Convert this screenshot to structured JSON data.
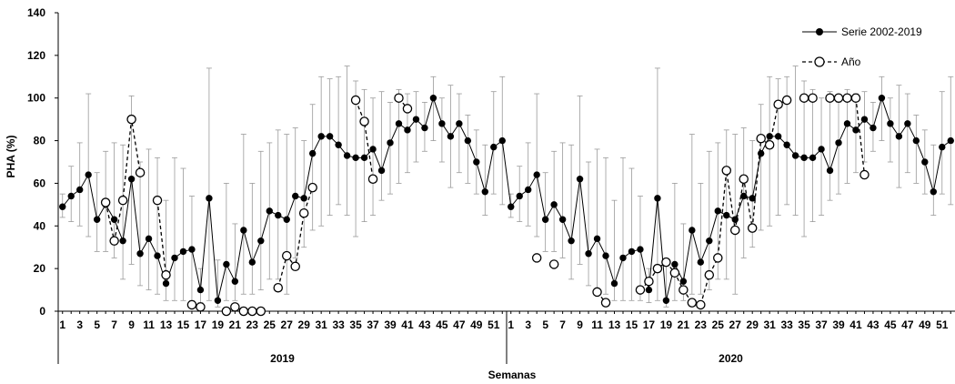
{
  "chart_data": {
    "type": "line",
    "xlabel": "Semanas",
    "ylabel": "PHA (%)",
    "ylim": [
      0,
      140
    ],
    "y_ticks": [
      0,
      20,
      40,
      60,
      80,
      100,
      120,
      140
    ],
    "years": [
      {
        "label": "2019",
        "start_week": 1,
        "end_week": 52
      },
      {
        "label": "2020",
        "start_week": 1,
        "end_week": 52
      }
    ],
    "x_tick_labels": [
      "1",
      "3",
      "5",
      "7",
      "9",
      "11",
      "13",
      "15",
      "17",
      "19",
      "21",
      "23",
      "25",
      "27",
      "29",
      "31",
      "33",
      "35",
      "37",
      "39",
      "41",
      "43",
      "45",
      "47",
      "49",
      "51",
      "1",
      "3",
      "5",
      "7",
      "9",
      "11",
      "13",
      "15",
      "17",
      "19",
      "21",
      "23",
      "25",
      "27",
      "29",
      "31",
      "33",
      "35",
      "37",
      "39",
      "41",
      "43",
      "45",
      "47",
      "49",
      "51"
    ],
    "legend_position": "top-right",
    "series": [
      {
        "name": "Serie 2002-2019",
        "style": "solid-filled-marker",
        "values_by_week": [
          49,
          54,
          57,
          64,
          43,
          50,
          43,
          33,
          62,
          27,
          34,
          26,
          13,
          25,
          28,
          29,
          10,
          53,
          5,
          22,
          14,
          38,
          23,
          33,
          47,
          45,
          43,
          54,
          53,
          74,
          82,
          82,
          78,
          73,
          72,
          72,
          76,
          66,
          79,
          88,
          85,
          90,
          86,
          100,
          88,
          82,
          88,
          80,
          70,
          56,
          77,
          80
        ],
        "error_low": [
          44,
          42,
          40,
          35,
          28,
          28,
          25,
          15,
          22,
          12,
          10,
          8,
          5,
          5,
          5,
          5,
          4,
          5,
          2,
          5,
          5,
          8,
          8,
          10,
          15,
          15,
          8,
          25,
          30,
          38,
          40,
          45,
          50,
          45,
          35,
          42,
          45,
          52,
          55,
          60,
          65,
          70,
          75,
          80,
          70,
          58,
          65,
          60,
          55,
          45,
          55,
          50
        ],
        "error_high": [
          55,
          68,
          79,
          102,
          65,
          75,
          79,
          78,
          101,
          70,
          76,
          72,
          52,
          72,
          67,
          54,
          20,
          114,
          24,
          60,
          41,
          83,
          60,
          75,
          79,
          85,
          83,
          86,
          80,
          97,
          110,
          109,
          110,
          115,
          108,
          104,
          100,
          103,
          98,
          104,
          102,
          103,
          98,
          110,
          100,
          106,
          102,
          92,
          85,
          78,
          103,
          110
        ]
      },
      {
        "name": "Año",
        "style": "dashed-open-marker",
        "segments": [
          {
            "year": "2019",
            "weeks": [
              6,
              7,
              8,
              9,
              10,
              11
            ],
            "values": [
              51,
              33,
              52,
              90,
              65,
              null
            ]
          },
          {
            "year": "2019",
            "weeks": [
              12,
              13
            ],
            "values": [
              52,
              17
            ]
          },
          {
            "year": "2019",
            "weeks": [
              16,
              17
            ],
            "values": [
              3,
              2
            ]
          },
          {
            "year": "2019",
            "weeks": [
              20,
              21,
              22,
              23,
              24
            ],
            "values": [
              0,
              2,
              0,
              0,
              0
            ]
          },
          {
            "year": "2019",
            "weeks": [
              26,
              27,
              28,
              29,
              30
            ],
            "values": [
              11,
              26,
              21,
              46,
              58
            ]
          },
          {
            "year": "2019",
            "weeks": [
              35,
              36,
              37
            ],
            "values": [
              99,
              89,
              62
            ]
          },
          {
            "year": "2019",
            "weeks": [
              40,
              41
            ],
            "values": [
              100,
              95
            ]
          },
          {
            "year": "2020",
            "weeks": [
              4
            ],
            "values": [
              25
            ]
          },
          {
            "year": "2020",
            "weeks": [
              6
            ],
            "values": [
              22
            ]
          },
          {
            "year": "2020",
            "weeks": [
              11,
              12
            ],
            "values": [
              9,
              4
            ]
          },
          {
            "year": "2020",
            "weeks": [
              16,
              17,
              18,
              19,
              20,
              21,
              22,
              23,
              24,
              25,
              26,
              27,
              28,
              29,
              30,
              31,
              32,
              33
            ],
            "values": [
              10,
              14,
              20,
              23,
              18,
              10,
              4,
              3,
              17,
              25,
              66,
              38,
              62,
              39,
              81,
              78,
              97,
              99
            ]
          },
          {
            "year": "2020",
            "weeks": [
              35,
              36
            ],
            "values": [
              100,
              100
            ]
          },
          {
            "year": "2020",
            "weeks": [
              38,
              39,
              40,
              41,
              42
            ],
            "values": [
              100,
              100,
              100,
              100,
              64
            ]
          }
        ]
      }
    ]
  }
}
